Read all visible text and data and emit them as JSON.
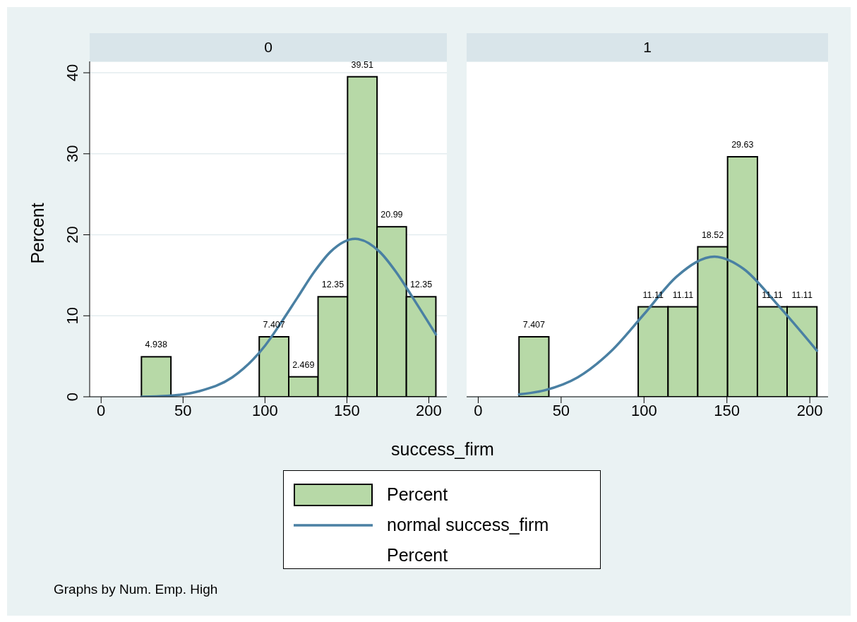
{
  "chart_data": [
    {
      "type": "histogram",
      "title": "0",
      "xlabel": "success_firm",
      "ylabel": "Percent",
      "legend": "bottom",
      "annotations": [
        "Percent",
        "Graphs by Num. Emp. High"
      ],
      "bins": [
        24.6,
        42.6,
        60.6,
        78.5,
        96.5,
        114.5,
        132.4,
        150.4,
        168.4,
        186.3,
        204.3
      ],
      "series": [
        {
          "name": "Percent",
          "color": "#b7d9a7",
          "values": [
            4.938,
            0,
            0,
            0,
            7.407,
            2.469,
            12.35,
            39.51,
            20.99,
            12.35
          ],
          "value_labels": [
            "4.938",
            null,
            null,
            null,
            "7.407",
            "2.469",
            "12.35",
            "39.51",
            "20.99",
            "12.35"
          ]
        },
        {
          "type": "line",
          "name": "normal success_firm",
          "color": "#4a80a3",
          "x": [
            24.6,
            40,
            60,
            80,
            100,
            110,
            120,
            130,
            140,
            155,
            170,
            180,
            190,
            204.3
          ],
          "values": [
            0,
            0.1,
            0.7,
            2.4,
            6.3,
            9.2,
            12.3,
            15.4,
            17.9,
            19.5,
            17.9,
            15.4,
            12.3,
            7.7
          ]
        }
      ],
      "xlim": [
        -7,
        211
      ],
      "xticks": [
        0,
        50,
        100,
        150,
        200
      ],
      "ylim": [
        0,
        41.4
      ],
      "yticks": [
        0,
        10,
        20,
        30,
        40
      ],
      "grid": "y"
    },
    {
      "type": "histogram",
      "title": "1",
      "tick_labels": "x",
      "bins": [
        24.6,
        42.6,
        60.6,
        78.5,
        96.5,
        114.5,
        132.4,
        150.4,
        168.4,
        186.3,
        204.3
      ],
      "series": [
        {
          "color": "#b7d9a7",
          "values": [
            7.407,
            0,
            0,
            0,
            11.11,
            11.11,
            18.52,
            29.63,
            11.11,
            11.11
          ],
          "value_labels": [
            "7.407",
            null,
            null,
            null,
            "11.11",
            "11.11",
            "18.52",
            "29.63",
            "11.11",
            "11.11"
          ]
        },
        {
          "type": "line",
          "color": "#4a80a3",
          "x": [
            24.6,
            40,
            60,
            80,
            100,
            120,
            142.5,
            160,
            180,
            204.3
          ],
          "values": [
            0.3,
            0.8,
            2.4,
            5.6,
            10.2,
            14.9,
            17.3,
            15.8,
            11.5,
            5.7
          ]
        }
      ],
      "xlim": [
        -7,
        211
      ],
      "xticks": [
        0,
        50,
        100,
        150,
        200
      ],
      "ylim": [
        0,
        41.4
      ],
      "yticks": [
        0,
        10,
        20,
        30,
        40
      ],
      "grid": "y"
    }
  ]
}
